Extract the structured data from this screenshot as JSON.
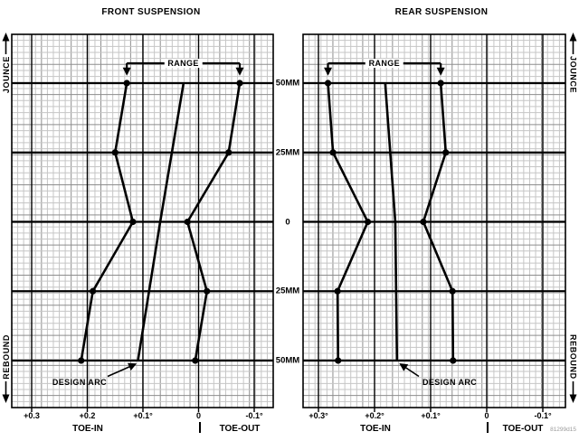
{
  "figure": {
    "code": "81299d15",
    "background": "#ffffff",
    "colors": {
      "line": "#000000",
      "grid_minor": "#c6c6c6",
      "grid_medium": "#8d8d8d"
    }
  },
  "axis": {
    "jounce_label": "JOUNCE",
    "rebound_label": "REBOUND",
    "travel_tick_labels": [
      "50MM",
      "25MM",
      "0",
      "25MM",
      "50MM"
    ]
  },
  "chart_data": [
    {
      "type": "line",
      "title": "FRONT SUSPENSION",
      "x_tick_labels": [
        "+0.3",
        "+0.2",
        "+0.1°",
        "0",
        "-0.1°"
      ],
      "x_tick_values": [
        0.3,
        0.2,
        0.1,
        0,
        -0.1
      ],
      "x_zone_labels": {
        "toe_in": "TOE-IN",
        "toe_out": "TOE-OUT"
      },
      "y_values": [
        50,
        25,
        0,
        -25,
        -50
      ],
      "series": [
        {
          "name": "toe-range-boundary-inner",
          "toe_deg": [
            0.129,
            0.15,
            0.118,
            0.19,
            0.211
          ],
          "markers": true
        },
        {
          "name": "design-arc",
          "toe_deg": [
            0.027,
            0.069,
            0.109
          ],
          "travel": [
            50,
            0,
            -50
          ],
          "markers": false
        },
        {
          "name": "toe-range-boundary-outer",
          "toe_deg": [
            -0.074,
            -0.054,
            0.02,
            -0.015,
            0.006
          ],
          "markers": true
        }
      ],
      "annotations": {
        "range": "RANGE",
        "design_arc": "DESIGN ARC"
      }
    },
    {
      "type": "line",
      "title": "REAR SUSPENSION",
      "x_tick_labels": [
        "+0.3°",
        "+0.2°",
        "+0.1°",
        "0",
        "-0.1°"
      ],
      "x_tick_values": [
        0.3,
        0.2,
        0.1,
        0,
        -0.1
      ],
      "x_zone_labels": {
        "toe_in": "TOE-IN",
        "toe_out": "TOE-OUT"
      },
      "y_values": [
        50,
        25,
        0,
        -25,
        -50
      ],
      "series": [
        {
          "name": "toe-range-boundary-inner",
          "toe_deg": [
            0.283,
            0.274,
            0.212,
            0.266,
            0.265
          ],
          "markers": true
        },
        {
          "name": "design-arc",
          "toe_deg": [
            0.181,
            0.163,
            0.16
          ],
          "travel": [
            50,
            0,
            -50
          ],
          "markers": false
        },
        {
          "name": "toe-range-boundary-outer",
          "toe_deg": [
            0.082,
            0.073,
            0.113,
            0.061,
            0.06
          ],
          "markers": true
        }
      ],
      "annotations": {
        "range": "RANGE",
        "design_arc": "DESIGN ARC"
      }
    }
  ]
}
